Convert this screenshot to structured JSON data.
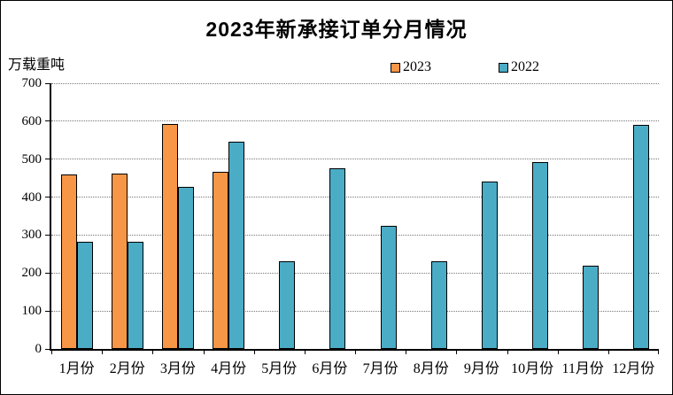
{
  "chart_data": {
    "type": "bar",
    "title": "2023年新承接订单分月情况",
    "unit_label": "万载重吨",
    "categories": [
      "1月份",
      "2月份",
      "3月份",
      "4月份",
      "5月份",
      "6月份",
      "7月份",
      "8月份",
      "9月份",
      "10月份",
      "11月份",
      "12月份"
    ],
    "series": [
      {
        "name": "2023",
        "color": "#F79646",
        "values": [
          460,
          462,
          593,
          466,
          null,
          null,
          null,
          null,
          null,
          null,
          null,
          null
        ]
      },
      {
        "name": "2022",
        "color": "#4BACC6",
        "values": [
          282,
          283,
          428,
          547,
          230,
          477,
          325,
          232,
          440,
          493,
          220,
          591
        ]
      }
    ],
    "ylim": [
      0,
      700
    ],
    "ytick_interval": 100,
    "grid": "horizontal-dotted",
    "legend_position": "top-center",
    "axis_color": "#000000",
    "gridline_color": "#777777"
  }
}
